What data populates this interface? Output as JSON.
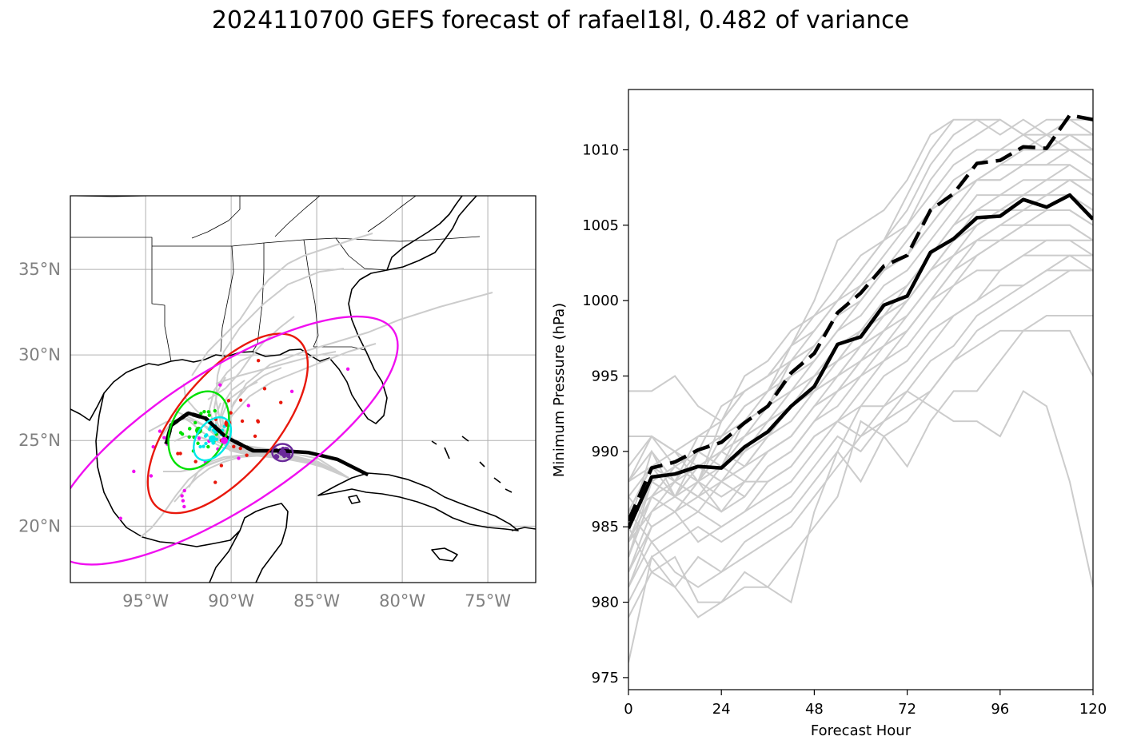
{
  "figure_title": "2024110700 GEFS forecast of rafael18l, 0.482 of variance",
  "colors": {
    "member": "#cccccc",
    "mean": "#000000",
    "ellipse_red": "#e8180c",
    "ellipse_green": "#00e000",
    "ellipse_cyan": "#00e8e8",
    "ellipse_magenta": "#f00ff0",
    "ellipse_purple": "#6a2a9a",
    "map_tick_label": "#808080",
    "grid": "#b0b0b0"
  },
  "chart_data": [
    {
      "type": "map",
      "lon_range": [
        -99.4,
        -72.2
      ],
      "lat_range": [
        16.7,
        39.3
      ],
      "lon_ticks": [
        {
          "value": -95,
          "label": "95°W"
        },
        {
          "value": -90,
          "label": "90°W"
        },
        {
          "value": -85,
          "label": "85°W"
        },
        {
          "value": -80,
          "label": "80°W"
        },
        {
          "value": -75,
          "label": "75°W"
        }
      ],
      "lat_ticks": [
        {
          "value": 20,
          "label": "20°N"
        },
        {
          "value": 25,
          "label": "25°N"
        },
        {
          "value": 30,
          "label": "30°N"
        },
        {
          "value": 35,
          "label": "35°N"
        }
      ],
      "grid": true,
      "ensemble_mean_track": [
        [
          -82.0,
          23.0
        ],
        [
          -83.8,
          23.9
        ],
        [
          -85.5,
          24.3
        ],
        [
          -87.0,
          24.4
        ],
        [
          -88.7,
          24.4
        ],
        [
          -90.3,
          25.2
        ],
        [
          -91.5,
          26.3
        ],
        [
          -92.5,
          26.6
        ],
        [
          -93.5,
          25.9
        ],
        [
          -93.8,
          24.8
        ]
      ],
      "ellipses": [
        {
          "color": "red",
          "center": [
            -90.2,
            26.0
          ],
          "semi_major_deg": 6.4,
          "semi_minor_deg": 2.9,
          "angle_deg": 50
        },
        {
          "color": "green",
          "center": [
            -91.9,
            25.6
          ],
          "semi_major_deg": 2.4,
          "semi_minor_deg": 1.6,
          "angle_deg": 65
        },
        {
          "color": "cyan",
          "center": [
            -91.1,
            25.1
          ],
          "semi_major_deg": 1.4,
          "semi_minor_deg": 0.9,
          "angle_deg": 55
        },
        {
          "color": "magenta",
          "center": [
            -90.4,
            25.0
          ],
          "semi_major_deg": 11.8,
          "semi_minor_deg": 4.0,
          "angle_deg": 33
        },
        {
          "color": "purple",
          "center": [
            -87.0,
            24.3
          ],
          "semi_major_deg": 0.6,
          "semi_minor_deg": 0.5,
          "angle_deg": 0
        }
      ]
    },
    {
      "type": "line",
      "xlabel": "Forecast Hour",
      "ylabel": "Minimum Pressure (hPa)",
      "xlim": [
        0,
        120
      ],
      "ylim": [
        974.2,
        1014.0
      ],
      "xticks": [
        0,
        24,
        48,
        72,
        96,
        120
      ],
      "yticks": [
        975,
        980,
        985,
        990,
        995,
        1000,
        1005,
        1010
      ],
      "x": [
        0,
        6,
        12,
        18,
        24,
        30,
        36,
        42,
        48,
        54,
        60,
        66,
        72,
        78,
        84,
        90,
        96,
        102,
        108,
        114,
        120
      ],
      "series": [
        {
          "style": "solid",
          "color": "#000000",
          "values": [
            984.9,
            988.3,
            988.5,
            989.0,
            988.9,
            990.3,
            991.3,
            993.0,
            994.3,
            997.1,
            997.6,
            999.7,
            1000.3,
            1003.2,
            1004.1,
            1005.5,
            1005.6,
            1006.7,
            1006.2,
            1007.0,
            1005.4
          ]
        },
        {
          "style": "dashed",
          "color": "#000000",
          "values": [
            985.4,
            988.9,
            989.3,
            990.1,
            990.6,
            991.9,
            993.0,
            995.2,
            996.5,
            999.2,
            1000.5,
            1002.3,
            1003.0,
            1006.0,
            1007.1,
            1009.1,
            1009.3,
            1010.2,
            1010.1,
            1012.3,
            1012.0
          ]
        }
      ],
      "members": [
        [
          983,
          988,
          987,
          990,
          989,
          992,
          993,
          995,
          996,
          998,
          1000,
          1002,
          1004,
          1006,
          1008,
          1009,
          1010,
          1010,
          1011,
          1012,
          1012
        ],
        [
          985,
          990,
          988,
          991,
          991,
          993,
          994,
          996,
          997,
          999,
          1001,
          1002,
          1003,
          1005,
          1007,
          1008,
          1009,
          1010,
          1010,
          1011,
          1011
        ],
        [
          987,
          989,
          990,
          991,
          992,
          994,
          995,
          996,
          998,
          1000,
          1002,
          1004,
          1005,
          1008,
          1010,
          1011,
          1012,
          1011,
          1012,
          1012,
          1011
        ],
        [
          991,
          991,
          989,
          990,
          993,
          994,
          995,
          997,
          999,
          1000,
          1001,
          1002,
          1003,
          1006,
          1007,
          1008,
          1009,
          1009,
          1010,
          1010,
          1009
        ],
        [
          994,
          994,
          995,
          993,
          992,
          995,
          996,
          998,
          999,
          1001,
          1003,
          1004,
          1006,
          1009,
          1011,
          1012,
          1012,
          1011,
          1011,
          1010,
          1010
        ],
        [
          988,
          991,
          990,
          989,
          990,
          991,
          993,
          994,
          996,
          998,
          999,
          1001,
          1002,
          1004,
          1006,
          1008,
          1008,
          1009,
          1009,
          1010,
          1009
        ],
        [
          986,
          987,
          989,
          988,
          989,
          990,
          992,
          993,
          995,
          996,
          998,
          999,
          1001,
          1003,
          1005,
          1006,
          1007,
          1007,
          1008,
          1008,
          1008
        ],
        [
          984,
          986,
          988,
          987,
          988,
          989,
          991,
          992,
          994,
          995,
          997,
          998,
          1000,
          1002,
          1004,
          1005,
          1006,
          1007,
          1007,
          1008,
          1007
        ],
        [
          983,
          987,
          986,
          988,
          987,
          988,
          990,
          991,
          993,
          994,
          996,
          998,
          999,
          1001,
          1003,
          1005,
          1006,
          1006,
          1007,
          1007,
          1006
        ],
        [
          982,
          986,
          987,
          986,
          988,
          987,
          989,
          990,
          992,
          993,
          995,
          997,
          998,
          1000,
          1002,
          1004,
          1005,
          1005,
          1006,
          1006,
          1005
        ],
        [
          981,
          985,
          986,
          987,
          986,
          988,
          988,
          989,
          991,
          992,
          994,
          996,
          997,
          999,
          1001,
          1003,
          1004,
          1005,
          1005,
          1005,
          1004
        ],
        [
          985,
          988,
          989,
          988,
          990,
          989,
          991,
          993,
          994,
          996,
          997,
          999,
          1000,
          1002,
          1004,
          1006,
          1006,
          1007,
          1007,
          1008,
          1007
        ],
        [
          986,
          989,
          988,
          990,
          989,
          991,
          992,
          994,
          995,
          997,
          998,
          1000,
          1001,
          1003,
          1005,
          1007,
          1007,
          1008,
          1008,
          1009,
          1008
        ],
        [
          984,
          988,
          987,
          989,
          988,
          990,
          991,
          993,
          994,
          995,
          997,
          998,
          1000,
          1002,
          1004,
          1005,
          1006,
          1007,
          1007,
          1007,
          1006
        ],
        [
          983,
          987,
          988,
          987,
          989,
          988,
          990,
          991,
          993,
          995,
          996,
          997,
          999,
          1001,
          1003,
          1004,
          1005,
          1006,
          1006,
          1006,
          1005
        ],
        [
          982,
          985,
          986,
          988,
          986,
          987,
          989,
          990,
          992,
          994,
          995,
          996,
          998,
          1000,
          1002,
          1003,
          1004,
          1005,
          1005,
          1005,
          1004
        ],
        [
          981,
          984,
          985,
          986,
          985,
          986,
          988,
          989,
          991,
          992,
          991,
          993,
          995,
          997,
          999,
          1000,
          1002,
          1003,
          1004,
          1004,
          1004
        ],
        [
          980,
          983,
          984,
          985,
          984,
          985,
          986,
          987,
          989,
          991,
          990,
          992,
          994,
          996,
          997,
          999,
          1000,
          1001,
          1002,
          1003,
          1003
        ],
        [
          979,
          982,
          981,
          983,
          982,
          984,
          985,
          986,
          988,
          990,
          988,
          991,
          992,
          994,
          996,
          998,
          999,
          1000,
          1001,
          1002,
          1002
        ],
        [
          976,
          983,
          981,
          979,
          980,
          982,
          981,
          983,
          985,
          987,
          992,
          991,
          989,
          992,
          994,
          994,
          996,
          998,
          998,
          998,
          995
        ],
        [
          985,
          982,
          983,
          980,
          980,
          981,
          981,
          980,
          986,
          990,
          993,
          993,
          994,
          993,
          992,
          992,
          991,
          994,
          993,
          988,
          981
        ],
        [
          986,
          984,
          982,
          981,
          982,
          983,
          984,
          985,
          987,
          989,
          991,
          992,
          993,
          994,
          996,
          997,
          998,
          998,
          999,
          999,
          999
        ],
        [
          987,
          985,
          986,
          984,
          985,
          986,
          987,
          988,
          990,
          992,
          993,
          995,
          996,
          998,
          999,
          1000,
          1001,
          1001,
          1002,
          1002,
          1002
        ],
        [
          988,
          990,
          987,
          989,
          988,
          989,
          990,
          991,
          993,
          994,
          996,
          997,
          998,
          1000,
          1001,
          1002,
          1002,
          1003,
          1003,
          1003,
          1002
        ],
        [
          989,
          991,
          990,
          988,
          990,
          991,
          992,
          993,
          995,
          996,
          998,
          999,
          1000,
          1002,
          1003,
          1004,
          1004,
          1004,
          1004,
          1004,
          1003
        ],
        [
          985,
          988,
          989,
          990,
          991,
          992,
          994,
          995,
          997,
          999,
          1000,
          1002,
          1003,
          1005,
          1007,
          1008,
          1008,
          1009,
          1009,
          1009,
          1008
        ],
        [
          986,
          989,
          988,
          989,
          990,
          992,
          993,
          996,
          997,
          999,
          1001,
          1003,
          1005,
          1007,
          1009,
          1010,
          1010,
          1011,
          1010,
          1011,
          1010
        ],
        [
          984,
          987,
          989,
          988,
          991,
          993,
          994,
          997,
          998,
          1000,
          1002,
          1004,
          1007,
          1010,
          1012,
          1012,
          1011,
          1012,
          1011,
          1011,
          1010
        ]
      ],
      "member_short": [
        [
          0,
          6,
          12,
          18,
          24,
          30,
          36,
          42,
          48,
          54,
          60,
          66,
          72,
          78,
          84
        ],
        [
          988,
          989,
          987,
          988,
          992,
          994,
          995,
          997,
          1000,
          1004,
          1005,
          1006,
          1008,
          1011,
          1012
        ]
      ]
    }
  ]
}
